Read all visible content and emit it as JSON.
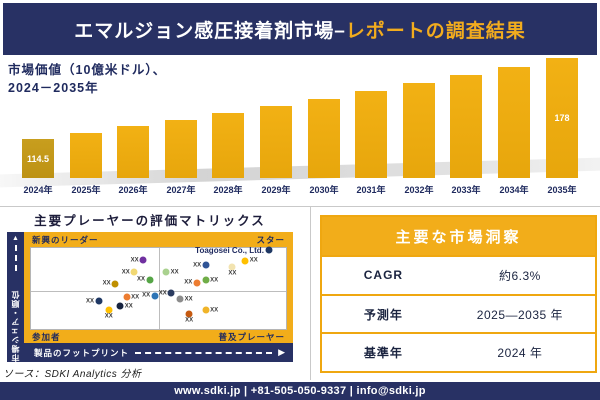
{
  "banner": {
    "title_main": "エマルジョン感圧接着剤市場–",
    "title_accent": "レポートの調査結果"
  },
  "chart_data": [
    {
      "type": "bar",
      "title": "市場価値（10億米ドル）、2024－2035年",
      "title_line1": "市場価値（10億米ドル）、",
      "title_line2": "2024－2035年",
      "categories": [
        "2024年",
        "2025年",
        "2026年",
        "2027年",
        "2028年",
        "2029年",
        "2030年",
        "2031年",
        "2032年",
        "2033年",
        "2034年",
        "2035年"
      ],
      "values": [
        114.5,
        119.2,
        124.0,
        129.1,
        134.4,
        139.9,
        145.6,
        151.5,
        157.7,
        164.2,
        170.9,
        178
      ],
      "data_labels": {
        "first": "114.5",
        "last": "178"
      },
      "bar_color": "#EDAB10",
      "first_bar_color": "#C0961B"
    },
    {
      "type": "scatter",
      "title": "主要プレーヤーの評価マトリックス",
      "xlabel": "製品のフットプリント",
      "ylabel": "市場シェア・順位",
      "quadrants": {
        "top_left": "新興のリーダー",
        "top_right": "スター",
        "bottom_left": "参加者",
        "bottom_right": "普及プレーヤー"
      },
      "point_label": "XX",
      "highlight_company": "Toagosei Co., Ltd.",
      "points": [
        {
          "x": 44.0,
          "y": 15,
          "color": "#7030A0",
          "label_pos": "left"
        },
        {
          "x": 40.5,
          "y": 30,
          "color": "#F1D873",
          "label_pos": "left"
        },
        {
          "x": 33.0,
          "y": 44,
          "color": "#BF8F00",
          "label_pos": "left"
        },
        {
          "x": 46.5,
          "y": 39,
          "color": "#55A546",
          "label_pos": "left"
        },
        {
          "x": 53.0,
          "y": 30,
          "color": "#A9D18E",
          "label_pos": "right"
        },
        {
          "x": 68.5,
          "y": 21,
          "color": "#2F5496",
          "label_pos": "left"
        },
        {
          "x": 65.0,
          "y": 43,
          "color": "#ED7D31",
          "label_pos": "left"
        },
        {
          "x": 68.5,
          "y": 40,
          "color": "#70AD47",
          "label_pos": "right"
        },
        {
          "x": 79.0,
          "y": 23,
          "color": "#F2E3B0",
          "label_pos": "below"
        },
        {
          "x": 84.0,
          "y": 16,
          "color": "#FFC000",
          "label_pos": "right"
        },
        {
          "x": 93.5,
          "y": 3,
          "color": "#1F3864",
          "label_pos": "company"
        },
        {
          "x": 26.5,
          "y": 66,
          "color": "#1F3864",
          "label_pos": "left"
        },
        {
          "x": 37.5,
          "y": 61,
          "color": "#ED7D31",
          "label_pos": "right"
        },
        {
          "x": 30.5,
          "y": 76,
          "color": "#FFC000",
          "label_pos": "below"
        },
        {
          "x": 35.0,
          "y": 72,
          "color": "#17233F",
          "label_pos": "right"
        },
        {
          "x": 48.5,
          "y": 59,
          "color": "#2E75B6",
          "label_pos": "left"
        },
        {
          "x": 55.0,
          "y": 56,
          "color": "#2A3B5F",
          "label_pos": "left"
        },
        {
          "x": 58.5,
          "y": 63,
          "color": "#8C8C8C",
          "label_pos": "right"
        },
        {
          "x": 62.0,
          "y": 81,
          "color": "#C55A11",
          "label_pos": "below"
        },
        {
          "x": 68.5,
          "y": 77,
          "color": "#F0B429",
          "label_pos": "right"
        }
      ]
    }
  ],
  "insights_table": {
    "title": "主要な市場洞察",
    "rows": [
      {
        "label": "CAGR",
        "value": "約6.3%"
      },
      {
        "label": "予測年",
        "value": "2025—2035 年"
      },
      {
        "label": "基準年",
        "value": "2024 年"
      }
    ]
  },
  "source": "ソース：SDKI Analytics 分析",
  "footer": {
    "text": "www.sdki.jp | +81-505-050-9337 | info@sdki.jp"
  },
  "palette": {
    "navy": "#283164",
    "amber": "#F2AD1A",
    "amber_border": "#EFA710",
    "accent_text": "#F2AC1E",
    "bar": "#EDAB10",
    "bar_first": "#C0961B"
  }
}
